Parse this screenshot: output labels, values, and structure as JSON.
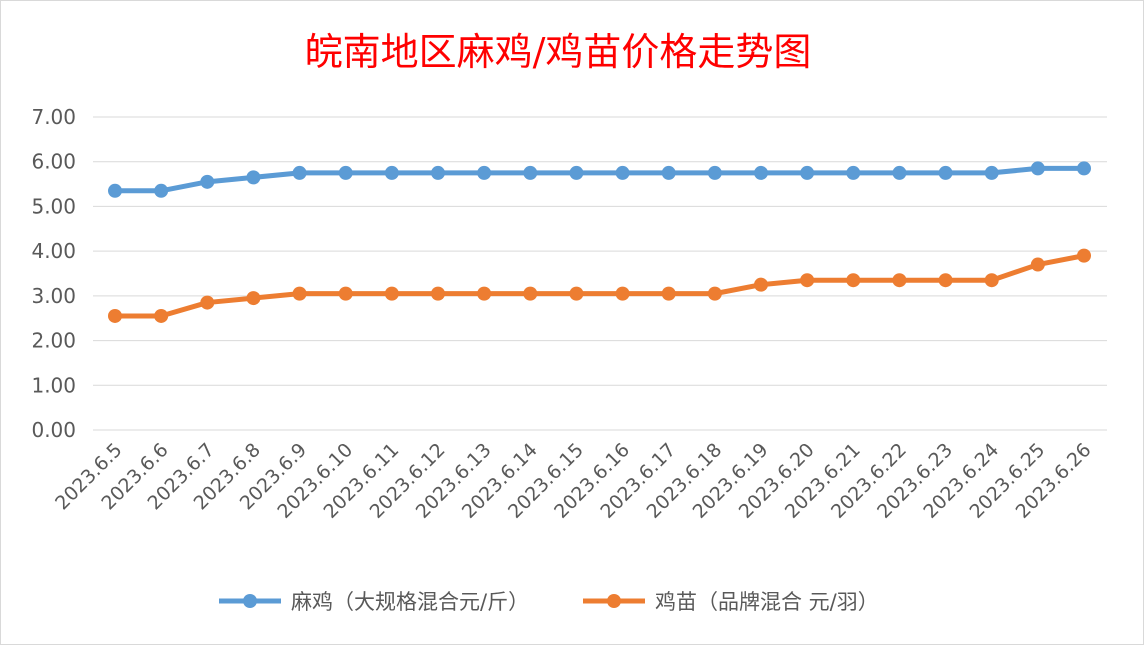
{
  "chart_data": {
    "type": "line",
    "title": "皖南地区麻鸡/鸡苗价格走势图",
    "xlabel": "",
    "ylabel": "",
    "categories": [
      "2023.6.5",
      "2023.6.6",
      "2023.6.7",
      "2023.6.8",
      "2023.6.9",
      "2023.6.10",
      "2023.6.11",
      "2023.6.12",
      "2023.6.13",
      "2023.6.14",
      "2023.6.15",
      "2023.6.16",
      "2023.6.17",
      "2023.6.18",
      "2023.6.19",
      "2023.6.20",
      "2023.6.21",
      "2023.6.22",
      "2023.6.23",
      "2023.6.24",
      "2023.6.25",
      "2023.6.26"
    ],
    "y_ticks": [
      "0.00",
      "1.00",
      "2.00",
      "3.00",
      "4.00",
      "5.00",
      "6.00",
      "7.00"
    ],
    "ylim": [
      0,
      7
    ],
    "grid": true,
    "legend_position": "bottom",
    "series": [
      {
        "name": "麻鸡（大规格混合元/斤）",
        "color": "#5b9bd5",
        "values": [
          5.35,
          5.35,
          5.55,
          5.65,
          5.75,
          5.75,
          5.75,
          5.75,
          5.75,
          5.75,
          5.75,
          5.75,
          5.75,
          5.75,
          5.75,
          5.75,
          5.75,
          5.75,
          5.75,
          5.75,
          5.85,
          5.85
        ]
      },
      {
        "name": "鸡苗（品牌混合 元/羽）",
        "color": "#ed7d31",
        "values": [
          2.55,
          2.55,
          2.85,
          2.95,
          3.05,
          3.05,
          3.05,
          3.05,
          3.05,
          3.05,
          3.05,
          3.05,
          3.05,
          3.05,
          3.25,
          3.35,
          3.35,
          3.35,
          3.35,
          3.35,
          3.7,
          3.9
        ]
      }
    ]
  }
}
